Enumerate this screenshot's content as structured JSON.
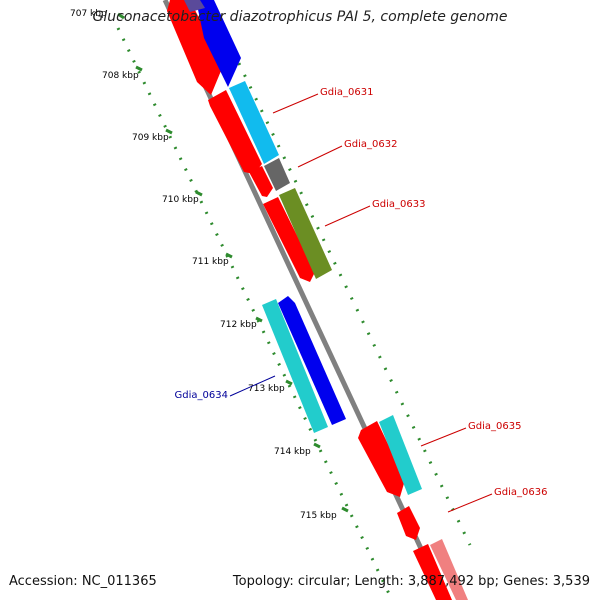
{
  "title": "Gluconacetobacter diazotrophicus PAI 5, complete genome",
  "footer": {
    "accession": "Accession: NC_011365",
    "summary": "Topology: circular; Length: 3,887,492 bp; Genes: 3,539"
  },
  "ruler_labels": [
    "707 kbp",
    "708 kbp",
    "709 kbp",
    "710 kbp",
    "711 kbp",
    "712 kbp",
    "713 kbp",
    "714 kbp",
    "715 kbp"
  ],
  "gene_labels": [
    {
      "text": "Gdia_0631",
      "color": "#cc0000"
    },
    {
      "text": "Gdia_0632",
      "color": "#cc0000"
    },
    {
      "text": "Gdia_0633",
      "color": "#cc0000"
    },
    {
      "text": "Gdia_0634",
      "color": "#000099"
    },
    {
      "text": "Gdia_0635",
      "color": "#cc0000"
    },
    {
      "text": "Gdia_0636",
      "color": "#cc0000"
    }
  ],
  "colors": {
    "backbone": "#808080",
    "cds": "#ff0000",
    "gene_forward": "#0000ee",
    "gene_teal": "#22cccc",
    "gene_sky": "#11bbee",
    "gene_olive": "#6b8e23",
    "gene_grey": "#666666",
    "tick_green": "#2e8b2e"
  }
}
